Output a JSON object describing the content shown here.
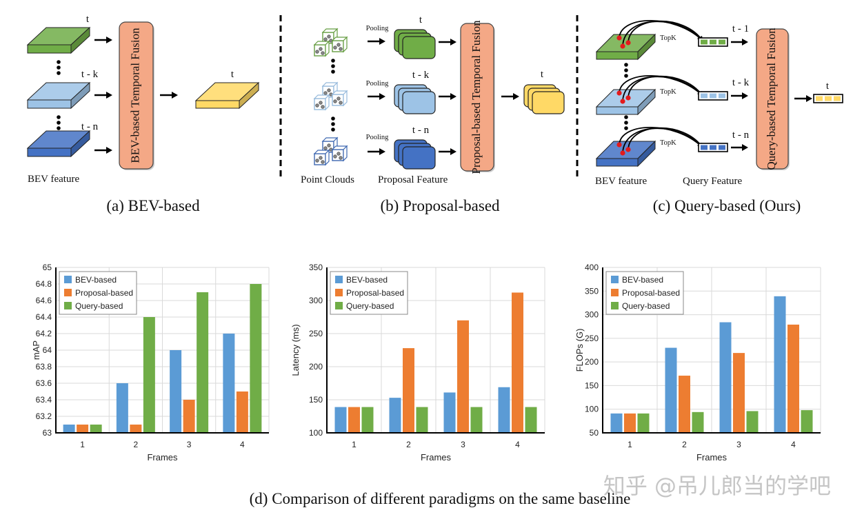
{
  "figure": {
    "panel_a": {
      "caption": "(a)  BEV-based",
      "frame_labels": [
        "t",
        "t - k",
        "t - n"
      ],
      "output_label": "t",
      "fusion_label": "BEV-based Temporal Fusion",
      "bottom_label": "BEV feature"
    },
    "panel_b": {
      "caption": "(b)  Proposal-based",
      "frame_labels": [
        "t",
        "t - k",
        "t - n"
      ],
      "pooling_label": "Pooling",
      "output_label": "t",
      "fusion_label": "Proposal-based Temporal Fusion",
      "bottom_labels": [
        "Point Clouds",
        "Proposal Feature"
      ]
    },
    "panel_c": {
      "caption": "(c)  Query-based (Ours)",
      "frame_labels": [
        "t - 1",
        "t - k",
        "t - n"
      ],
      "topk_label": "TopK",
      "output_label": "t",
      "fusion_label": "Query-based Temporal Fusion",
      "bottom_labels": [
        "BEV feature",
        "Query Feature"
      ]
    },
    "caption_d": "(d)  Comparison of different paradigms on the same baseline",
    "watermark": "知乎 @吊儿郎当的学吧",
    "colors": {
      "frame_t": "#70ad47",
      "frame_t_k": "#9dc3e6",
      "frame_t_n": "#4472c4",
      "output": "#ffd966",
      "fusion_box": "#f4a886",
      "query_points": "#e31a1c"
    }
  },
  "chart_data": [
    {
      "type": "bar",
      "title": "",
      "xlabel": "Frames",
      "ylabel": "mAP",
      "categories": [
        "1",
        "2",
        "3",
        "4"
      ],
      "ylim": [
        63,
        65
      ],
      "yticks": [
        "63",
        "63.2",
        "63.4",
        "63.6",
        "63.8",
        "64",
        "64.2",
        "64.4",
        "64.6",
        "64.8",
        "65"
      ],
      "grid": true,
      "legend": "top-left",
      "series": [
        {
          "name": "BEV-based",
          "color": "#5b9bd5",
          "values": [
            63.1,
            63.6,
            64.0,
            64.2
          ]
        },
        {
          "name": "Proposal-based",
          "color": "#ed7d31",
          "values": [
            63.1,
            63.1,
            63.4,
            63.5
          ]
        },
        {
          "name": "Query-based",
          "color": "#70ad47",
          "values": [
            63.1,
            64.4,
            64.7,
            64.8
          ]
        }
      ]
    },
    {
      "type": "bar",
      "title": "",
      "xlabel": "Frames",
      "ylabel": "Latency (ms)",
      "categories": [
        "1",
        "2",
        "3",
        "4"
      ],
      "ylim": [
        100,
        350
      ],
      "yticks": [
        "100",
        "150",
        "200",
        "250",
        "300",
        "350"
      ],
      "grid": true,
      "legend": "top-left",
      "series": [
        {
          "name": "BEV-based",
          "color": "#5b9bd5",
          "values": [
            139,
            153,
            161,
            169
          ]
        },
        {
          "name": "Proposal-based",
          "color": "#ed7d31",
          "values": [
            139,
            228,
            270,
            312
          ]
        },
        {
          "name": "Query-based",
          "color": "#70ad47",
          "values": [
            139,
            139,
            139,
            139
          ]
        }
      ]
    },
    {
      "type": "bar",
      "title": "",
      "xlabel": "Frames",
      "ylabel": "FLOPs (G)",
      "categories": [
        "1",
        "2",
        "3",
        "4"
      ],
      "ylim": [
        50,
        400
      ],
      "yticks": [
        "50",
        "100",
        "150",
        "200",
        "250",
        "300",
        "350",
        "400"
      ],
      "grid": true,
      "legend": "top-left",
      "series": [
        {
          "name": "BEV-based",
          "color": "#5b9bd5",
          "values": [
            91,
            230,
            284,
            339
          ]
        },
        {
          "name": "Proposal-based",
          "color": "#ed7d31",
          "values": [
            91,
            171,
            219,
            279
          ]
        },
        {
          "name": "Query-based",
          "color": "#70ad47",
          "values": [
            91,
            94,
            96,
            98
          ]
        }
      ]
    }
  ]
}
